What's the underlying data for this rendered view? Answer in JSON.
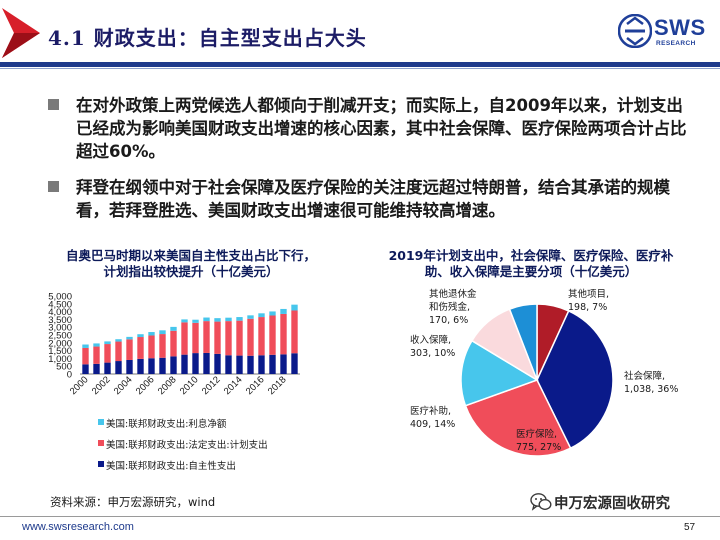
{
  "header": {
    "title": "4.1 财政支出：自主型支出占大头",
    "logo_text": "SWS",
    "logo_sub": "RESEARCH"
  },
  "bullets": [
    "在对外政策上两党候选人都倾向于削减开支；而实际上，自2009年以来，计划支出已经成为影响美国财政支出增速的核心因素，其中社会保障、医疗保险两项合计占比超过60%。",
    "拜登在纲领中对于社会保障及医疗保险的关注度远超过特朗普，结合其承诺的规模看，若拜登胜选、美国财政支出增速很可能维持较高增速。"
  ],
  "colors": {
    "title": "#1c1c66",
    "rule": "#1e3a8c",
    "discretionary": "#0a1a8a",
    "mandatory": "#f04d5a",
    "interest": "#47c6ec"
  },
  "chart_data": [
    {
      "type": "bar",
      "stacked": true,
      "title": "自奥巴马时期以来美国自主性支出占比下行，计划指出较快提升（十亿美元）",
      "categories": [
        "2000",
        "2001",
        "2002",
        "2003",
        "2004",
        "2005",
        "2006",
        "2007",
        "2008",
        "2009",
        "2010",
        "2011",
        "2012",
        "2013",
        "2014",
        "2015",
        "2016",
        "2017",
        "2018",
        "2019"
      ],
      "x_tick_labels": [
        "2000",
        "2002",
        "2004",
        "2006",
        "2008",
        "2010",
        "2012",
        "2014",
        "2016",
        "2018"
      ],
      "ylim": [
        0,
        5000
      ],
      "y_ticks": [
        "0",
        "500",
        "1,000",
        "1,500",
        "2,000",
        "2,500",
        "3,000",
        "3,500",
        "4,000",
        "4,500",
        "5,000"
      ],
      "grid": false,
      "legend_position": "bottom-left",
      "series": [
        {
          "name": "美国:联邦财政支出:自主性支出",
          "color": "#0a1a8a",
          "values": [
            620,
            650,
            730,
            830,
            900,
            970,
            1010,
            1040,
            1130,
            1240,
            1340,
            1350,
            1290,
            1200,
            1180,
            1170,
            1200,
            1230,
            1260,
            1330
          ]
        },
        {
          "name": "美国:联邦财政支出:法定支出:计划支出",
          "color": "#f04d5a",
          "values": [
            1050,
            1110,
            1190,
            1250,
            1320,
            1400,
            1460,
            1520,
            1640,
            2070,
            1940,
            2040,
            2070,
            2190,
            2240,
            2370,
            2450,
            2520,
            2590,
            2740
          ]
        },
        {
          "name": "美国:联邦财政支出:利息净额",
          "color": "#47c6ec",
          "values": [
            220,
            200,
            170,
            150,
            160,
            180,
            220,
            240,
            250,
            190,
            200,
            230,
            220,
            220,
            230,
            220,
            240,
            260,
            320,
            375
          ]
        }
      ]
    },
    {
      "type": "pie",
      "title": "2019年计划支出中，社会保障、医疗保险、医疗补助、收入保障是主要分项（十亿美元）",
      "slices": [
        {
          "name": "其他项目",
          "value": 198,
          "pct": "7%",
          "color": "#b01c28",
          "label_lines": [
            "其他项目,",
            "198, 7%"
          ]
        },
        {
          "name": "社会保障",
          "value": 1038,
          "pct": "36%",
          "color": "#0a1a8a",
          "label_lines": [
            "社会保障,",
            "1,038, 36%"
          ]
        },
        {
          "name": "医疗保险",
          "value": 775,
          "pct": "27%",
          "color": "#f04d5a",
          "label_lines": [
            "医疗保险,",
            "775, 27%"
          ]
        },
        {
          "name": "医疗补助",
          "value": 409,
          "pct": "14%",
          "color": "#47c6ec",
          "label_lines": [
            "医疗补助,",
            "409, 14%"
          ]
        },
        {
          "name": "收入保障",
          "value": 303,
          "pct": "10%",
          "color": "#fadadd",
          "label_lines": [
            "收入保障,",
            "303, 10%"
          ]
        },
        {
          "name": "其他退休金和伤残金",
          "value": 170,
          "pct": "6%",
          "color": "#1d8fd6",
          "label_lines": [
            "其他退休金",
            "和伤残金,",
            "170, 6%"
          ]
        }
      ]
    }
  ],
  "source": "资料来源：申万宏源研究，wind",
  "wechat_label": "申万宏源固收研究",
  "footer_url": "www.swsresearch.com",
  "page_number": "57"
}
